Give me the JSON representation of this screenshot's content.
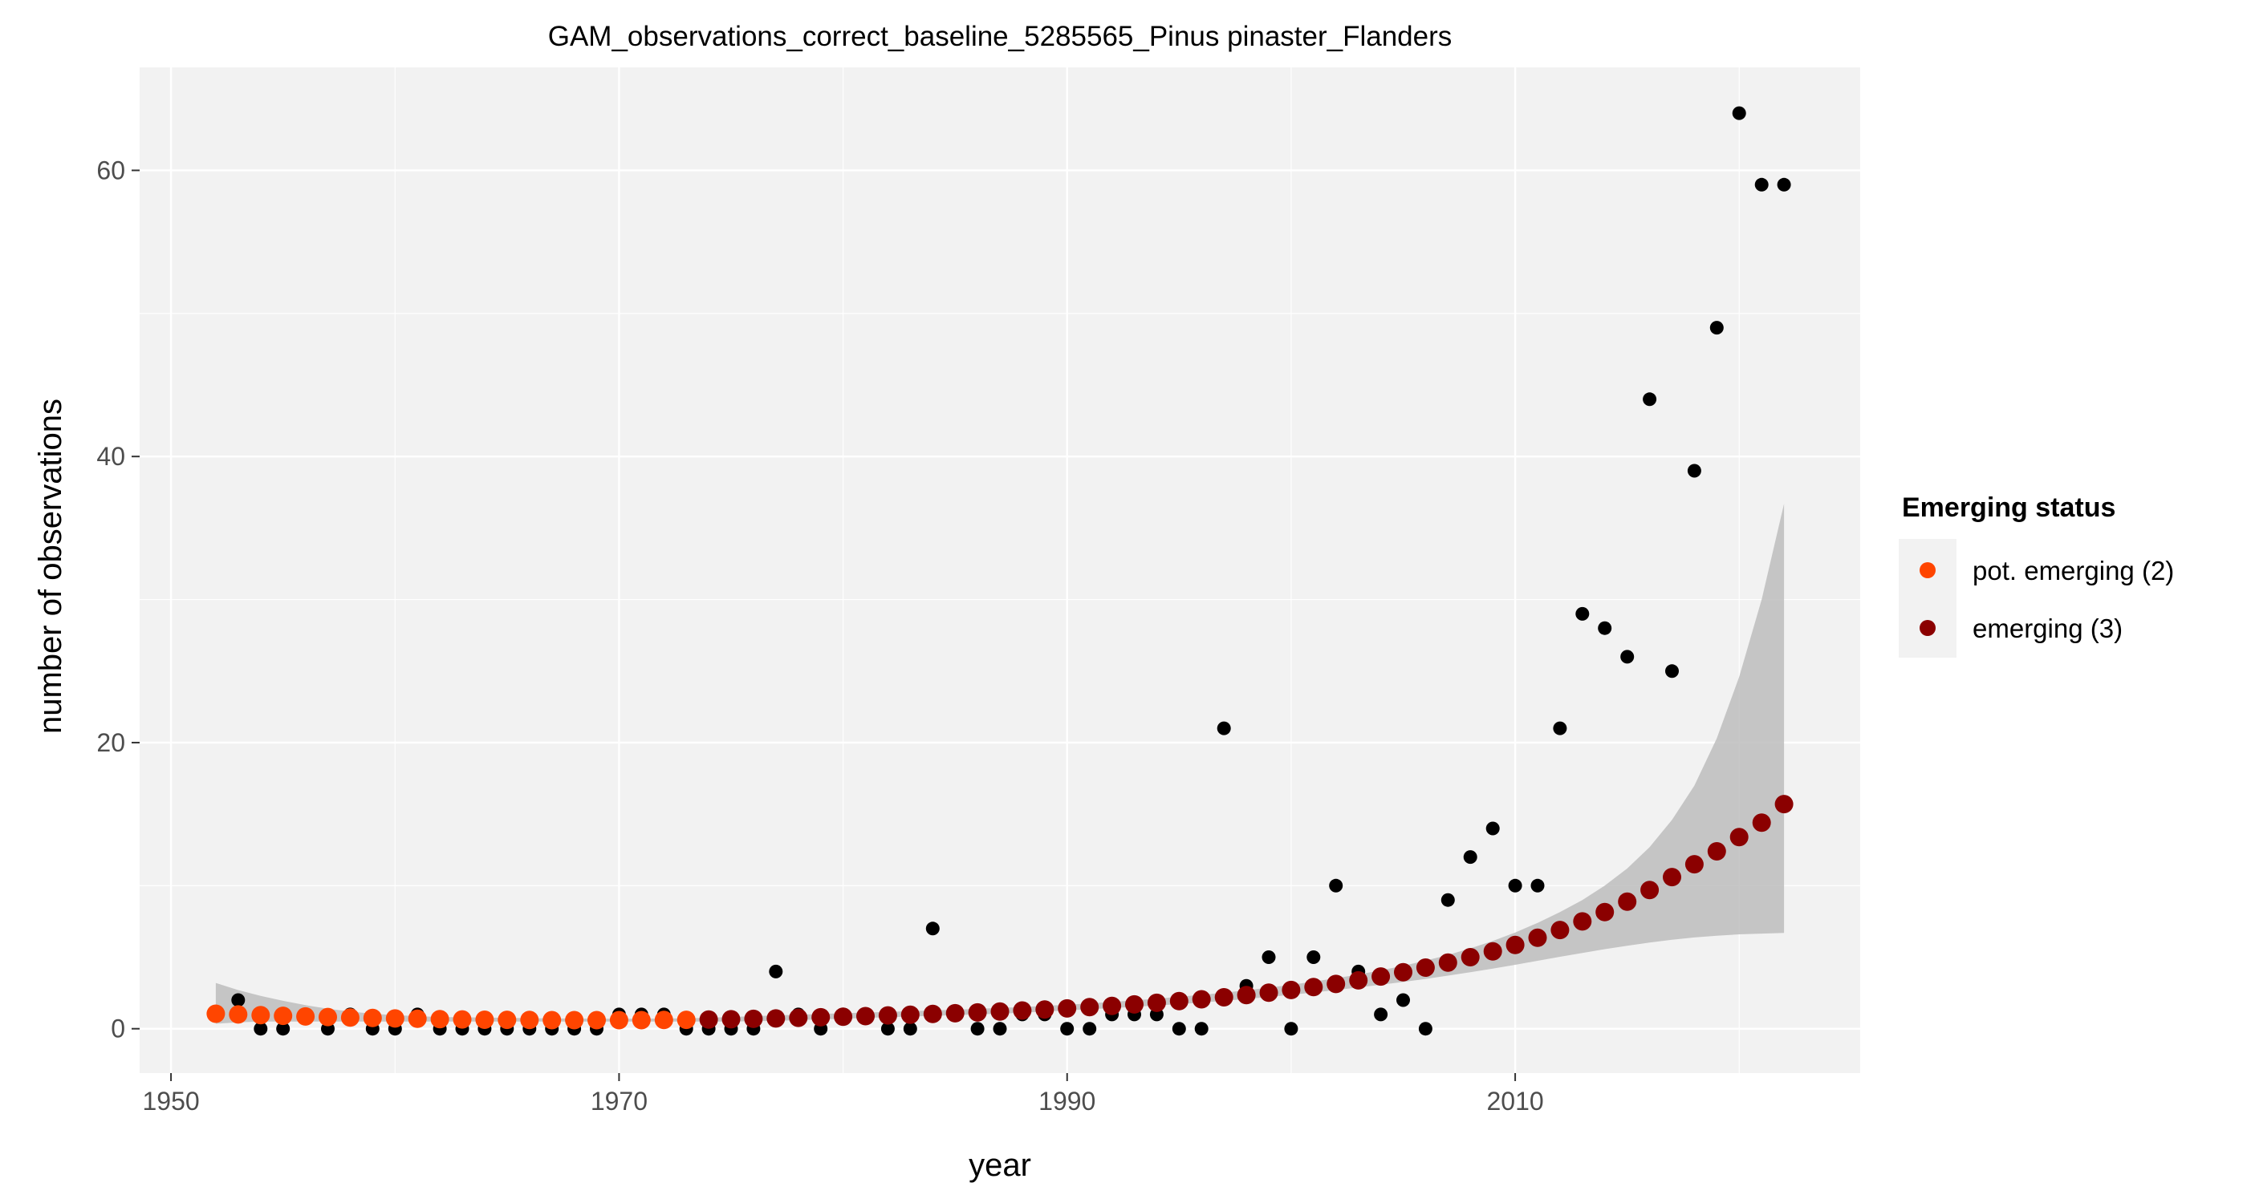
{
  "chart_data": {
    "type": "scatter",
    "title": "GAM_observations_correct_baseline_5285565_Pinus pinaster_Flanders",
    "xlabel": "year",
    "ylabel": "number of observations",
    "xlim": [
      1948.6,
      2025.4
    ],
    "ylim": [
      -3.1,
      67.2
    ],
    "x_ticks": [
      1950,
      1970,
      1990,
      2010
    ],
    "y_ticks": [
      0,
      20,
      40,
      60
    ],
    "grid": true,
    "legend": {
      "title": "Emerging status",
      "position": "right",
      "entries": [
        {
          "label": "pot. emerging (2)",
          "color": "#FF4500"
        },
        {
          "label": "emerging (3)",
          "color": "#8B0000"
        }
      ]
    },
    "observations": {
      "color": "#000000",
      "x": [
        1952,
        1953,
        1954,
        1955,
        1956,
        1957,
        1958,
        1959,
        1960,
        1961,
        1962,
        1963,
        1964,
        1965,
        1966,
        1967,
        1968,
        1969,
        1970,
        1971,
        1972,
        1973,
        1974,
        1975,
        1976,
        1977,
        1978,
        1979,
        1980,
        1981,
        1982,
        1983,
        1984,
        1985,
        1986,
        1987,
        1988,
        1989,
        1990,
        1991,
        1992,
        1993,
        1994,
        1995,
        1996,
        1997,
        1998,
        1999,
        2000,
        2001,
        2002,
        2003,
        2004,
        2005,
        2006,
        2007,
        2008,
        2009,
        2010,
        2011,
        2012,
        2013,
        2014,
        2015,
        2016,
        2017,
        2018,
        2019,
        2020,
        2021,
        2022
      ],
      "y": [
        1,
        2,
        0,
        0,
        1,
        0,
        1,
        0,
        0,
        1,
        0,
        0,
        0,
        0,
        0,
        0,
        0,
        0,
        1,
        1,
        1,
        0,
        0,
        0,
        0,
        4,
        1,
        0,
        1,
        1,
        0,
        0,
        7,
        1,
        0,
        0,
        1,
        1,
        0,
        0,
        1,
        1,
        1,
        0,
        0,
        21,
        3,
        5,
        0,
        5,
        10,
        4,
        1,
        2,
        0,
        9,
        12,
        14,
        10,
        10,
        21,
        29,
        28,
        26,
        44,
        25,
        39,
        49,
        64,
        59,
        59
      ]
    },
    "fit": {
      "x": [
        1952,
        1953,
        1954,
        1955,
        1956,
        1957,
        1958,
        1959,
        1960,
        1961,
        1962,
        1963,
        1964,
        1965,
        1966,
        1967,
        1968,
        1969,
        1970,
        1971,
        1972,
        1973,
        1974,
        1975,
        1976,
        1977,
        1978,
        1979,
        1980,
        1981,
        1982,
        1983,
        1984,
        1985,
        1986,
        1987,
        1988,
        1989,
        1990,
        1991,
        1992,
        1993,
        1994,
        1995,
        1996,
        1997,
        1998,
        1999,
        2000,
        2001,
        2002,
        2003,
        2004,
        2005,
        2006,
        2007,
        2008,
        2009,
        2010,
        2011,
        2012,
        2013,
        2014,
        2015,
        2016,
        2017,
        2018,
        2019,
        2020,
        2021,
        2022
      ],
      "y": [
        1.05,
        1.0,
        0.95,
        0.9,
        0.86,
        0.82,
        0.78,
        0.75,
        0.72,
        0.7,
        0.67,
        0.65,
        0.63,
        0.62,
        0.61,
        0.6,
        0.6,
        0.6,
        0.6,
        0.6,
        0.61,
        0.62,
        0.64,
        0.66,
        0.69,
        0.72,
        0.76,
        0.8,
        0.84,
        0.88,
        0.93,
        0.98,
        1.03,
        1.08,
        1.14,
        1.2,
        1.27,
        1.34,
        1.42,
        1.51,
        1.6,
        1.7,
        1.81,
        1.93,
        2.06,
        2.2,
        2.35,
        2.52,
        2.71,
        2.91,
        3.13,
        3.38,
        3.65,
        3.95,
        4.27,
        4.62,
        5.0,
        5.41,
        5.86,
        6.36,
        6.9,
        7.5,
        8.15,
        8.88,
        9.7,
        10.6,
        11.5,
        12.4,
        13.4,
        14.4,
        15.7
      ],
      "status": [
        "pot. emerging (2)",
        "pot. emerging (2)",
        "pot. emerging (2)",
        "pot. emerging (2)",
        "pot. emerging (2)",
        "pot. emerging (2)",
        "pot. emerging (2)",
        "pot. emerging (2)",
        "pot. emerging (2)",
        "pot. emerging (2)",
        "pot. emerging (2)",
        "pot. emerging (2)",
        "pot. emerging (2)",
        "pot. emerging (2)",
        "pot. emerging (2)",
        "pot. emerging (2)",
        "pot. emerging (2)",
        "pot. emerging (2)",
        "pot. emerging (2)",
        "pot. emerging (2)",
        "pot. emerging (2)",
        "pot. emerging (2)",
        "emerging (3)",
        "emerging (3)",
        "emerging (3)",
        "emerging (3)",
        "emerging (3)",
        "emerging (3)",
        "emerging (3)",
        "emerging (3)",
        "emerging (3)",
        "emerging (3)",
        "emerging (3)",
        "emerging (3)",
        "emerging (3)",
        "emerging (3)",
        "emerging (3)",
        "emerging (3)",
        "emerging (3)",
        "emerging (3)",
        "emerging (3)",
        "emerging (3)",
        "emerging (3)",
        "emerging (3)",
        "emerging (3)",
        "emerging (3)",
        "emerging (3)",
        "emerging (3)",
        "emerging (3)",
        "emerging (3)",
        "emerging (3)",
        "emerging (3)",
        "emerging (3)",
        "emerging (3)",
        "emerging (3)",
        "emerging (3)",
        "emerging (3)",
        "emerging (3)",
        "emerging (3)",
        "emerging (3)",
        "emerging (3)",
        "emerging (3)",
        "emerging (3)",
        "emerging (3)",
        "emerging (3)",
        "emerging (3)",
        "emerging (3)",
        "emerging (3)",
        "emerging (3)",
        "emerging (3)",
        "emerging (3)"
      ],
      "ci_lower": [
        0.35,
        0.45,
        0.5,
        0.5,
        0.5,
        0.5,
        0.5,
        0.5,
        0.5,
        0.5,
        0.5,
        0.5,
        0.5,
        0.5,
        0.5,
        0.5,
        0.5,
        0.5,
        0.5,
        0.5,
        0.5,
        0.5,
        0.5,
        0.5,
        0.52,
        0.55,
        0.6,
        0.65,
        0.7,
        0.75,
        0.8,
        0.85,
        0.9,
        0.95,
        1.0,
        1.05,
        1.12,
        1.2,
        1.28,
        1.36,
        1.44,
        1.53,
        1.62,
        1.72,
        1.83,
        1.95,
        2.08,
        2.22,
        2.37,
        2.53,
        2.7,
        2.88,
        3.07,
        3.27,
        3.48,
        3.71,
        3.95,
        4.2,
        4.47,
        4.75,
        5.03,
        5.3,
        5.56,
        5.8,
        6.02,
        6.22,
        6.38,
        6.5,
        6.6,
        6.65,
        6.7
      ],
      "ci_upper": [
        3.2,
        2.7,
        2.3,
        1.95,
        1.65,
        1.4,
        1.2,
        1.05,
        0.95,
        0.88,
        0.82,
        0.8,
        0.78,
        0.76,
        0.74,
        0.72,
        0.71,
        0.7,
        0.7,
        0.7,
        0.71,
        0.73,
        0.77,
        0.82,
        0.88,
        0.93,
        0.98,
        1.03,
        1.08,
        1.13,
        1.18,
        1.23,
        1.28,
        1.33,
        1.39,
        1.45,
        1.52,
        1.6,
        1.68,
        1.77,
        1.87,
        1.98,
        2.1,
        2.23,
        2.37,
        2.52,
        2.69,
        2.87,
        3.07,
        3.29,
        3.53,
        3.79,
        4.08,
        4.4,
        4.76,
        5.16,
        5.62,
        6.14,
        6.73,
        7.4,
        8.15,
        9.0,
        10.0,
        11.2,
        12.7,
        14.6,
        17.0,
        20.3,
        24.6,
        30.0,
        36.7
      ]
    }
  }
}
